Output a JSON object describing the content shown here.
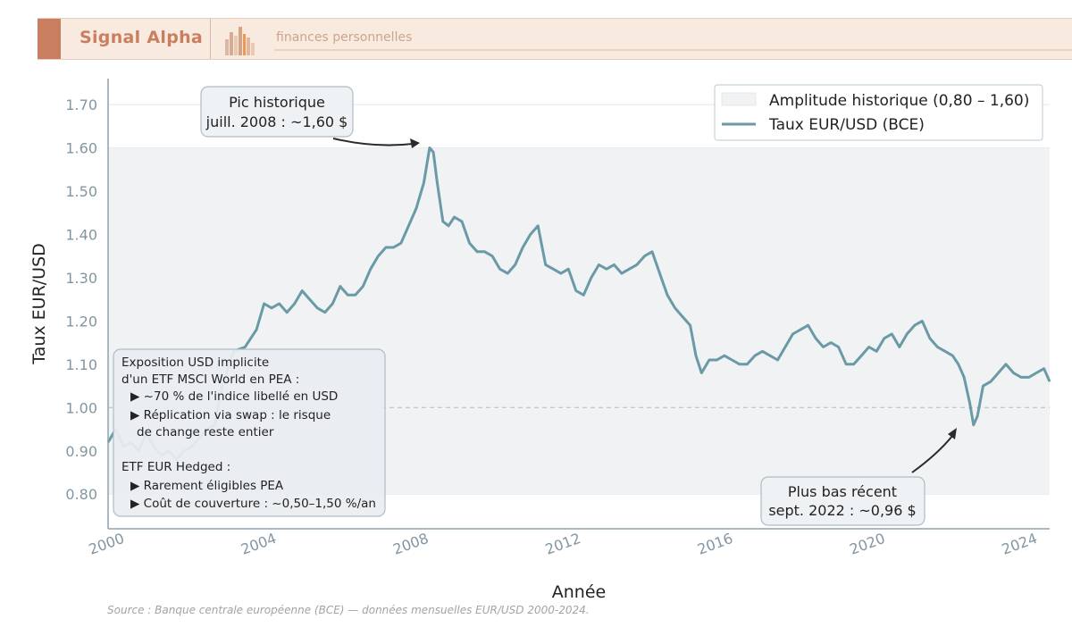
{
  "header": {
    "brand": "Signal Alpha",
    "tagline": "finances personnelles"
  },
  "colors": {
    "accent": "#c97f5f",
    "series": "#6a9aa6",
    "band": "#f0f2f4",
    "axis": "#8fa3ad",
    "tick_text": "#8396a2"
  },
  "chart_data": {
    "type": "line",
    "xlabel": "Année",
    "ylabel": "Taux EUR/USD",
    "xlim": [
      2000,
      2024.75
    ],
    "ylim": [
      0.72,
      1.76
    ],
    "yticks": [
      0.8,
      0.9,
      1.0,
      1.1,
      1.2,
      1.3,
      1.4,
      1.5,
      1.6,
      1.7
    ],
    "ytick_labels": [
      "0.80",
      "0.90",
      "1.00",
      "1.10",
      "1.20",
      "1.30",
      "1.40",
      "1.50",
      "1.60",
      "1.70"
    ],
    "xticks": [
      2000,
      2004,
      2008,
      2012,
      2016,
      2020,
      2024
    ],
    "xtick_labels": [
      "2000",
      "2004",
      "2008",
      "2012",
      "2016",
      "2020",
      "2024"
    ],
    "grid": true,
    "legend_placement": "top-right",
    "band": {
      "name": "Amplitude historique (0,80 – 1,60)",
      "low": 0.8,
      "high": 1.6
    },
    "reference_line": 1.0,
    "series": [
      {
        "name": "Taux EUR/USD (BCE)",
        "x": [
          2000.0,
          2000.2,
          2000.4,
          2000.6,
          2000.8,
          2001.0,
          2001.2,
          2001.4,
          2001.6,
          2001.8,
          2002.0,
          2002.2,
          2002.4,
          2002.6,
          2002.8,
          2003.0,
          2003.3,
          2003.6,
          2003.9,
          2004.1,
          2004.3,
          2004.5,
          2004.7,
          2004.9,
          2005.1,
          2005.3,
          2005.5,
          2005.7,
          2005.9,
          2006.1,
          2006.3,
          2006.5,
          2006.7,
          2006.9,
          2007.1,
          2007.3,
          2007.5,
          2007.7,
          2007.9,
          2008.1,
          2008.3,
          2008.45,
          2008.55,
          2008.65,
          2008.8,
          2008.95,
          2009.1,
          2009.3,
          2009.5,
          2009.7,
          2009.9,
          2010.1,
          2010.3,
          2010.5,
          2010.7,
          2010.9,
          2011.1,
          2011.3,
          2011.5,
          2011.7,
          2011.9,
          2012.1,
          2012.3,
          2012.5,
          2012.7,
          2012.9,
          2013.1,
          2013.3,
          2013.5,
          2013.7,
          2013.9,
          2014.1,
          2014.3,
          2014.5,
          2014.7,
          2014.9,
          2015.1,
          2015.3,
          2015.45,
          2015.6,
          2015.8,
          2016.0,
          2016.2,
          2016.4,
          2016.6,
          2016.8,
          2017.0,
          2017.2,
          2017.4,
          2017.6,
          2017.8,
          2018.0,
          2018.2,
          2018.4,
          2018.6,
          2018.8,
          2019.0,
          2019.2,
          2019.4,
          2019.6,
          2019.8,
          2020.0,
          2020.2,
          2020.4,
          2020.6,
          2020.8,
          2021.0,
          2021.2,
          2021.4,
          2021.6,
          2021.8,
          2022.0,
          2022.2,
          2022.35,
          2022.5,
          2022.65,
          2022.75,
          2022.85,
          2023.0,
          2023.2,
          2023.4,
          2023.6,
          2023.8,
          2024.0,
          2024.2,
          2024.4,
          2024.6,
          2024.75
        ],
        "y": [
          0.92,
          0.95,
          0.91,
          0.92,
          0.9,
          0.94,
          0.91,
          0.89,
          0.9,
          0.88,
          0.9,
          0.91,
          0.93,
          0.95,
          0.96,
          1.05,
          1.13,
          1.14,
          1.18,
          1.24,
          1.23,
          1.24,
          1.22,
          1.24,
          1.27,
          1.25,
          1.23,
          1.22,
          1.24,
          1.28,
          1.26,
          1.26,
          1.28,
          1.32,
          1.35,
          1.37,
          1.37,
          1.38,
          1.42,
          1.46,
          1.52,
          1.6,
          1.59,
          1.52,
          1.43,
          1.42,
          1.44,
          1.43,
          1.38,
          1.36,
          1.36,
          1.35,
          1.32,
          1.31,
          1.33,
          1.37,
          1.4,
          1.42,
          1.33,
          1.32,
          1.31,
          1.32,
          1.27,
          1.26,
          1.3,
          1.33,
          1.32,
          1.33,
          1.31,
          1.32,
          1.33,
          1.35,
          1.36,
          1.31,
          1.26,
          1.23,
          1.21,
          1.19,
          1.12,
          1.08,
          1.11,
          1.11,
          1.12,
          1.11,
          1.1,
          1.1,
          1.12,
          1.13,
          1.12,
          1.11,
          1.14,
          1.17,
          1.18,
          1.19,
          1.16,
          1.14,
          1.15,
          1.14,
          1.1,
          1.1,
          1.12,
          1.14,
          1.13,
          1.16,
          1.17,
          1.14,
          1.17,
          1.19,
          1.2,
          1.16,
          1.14,
          1.13,
          1.12,
          1.1,
          1.07,
          1.01,
          0.96,
          0.98,
          1.05,
          1.06,
          1.08,
          1.1,
          1.08,
          1.07,
          1.07,
          1.08,
          1.09,
          1.06
        ]
      }
    ],
    "annotations": [
      {
        "text_lines": [
          "Pic historique",
          "juill. 2008 : ~1,60 $"
        ],
        "x": 2008.5,
        "y": 1.6
      },
      {
        "text_lines": [
          "Plus bas récent",
          "sept. 2022 : ~0,96 $"
        ],
        "x": 2022.75,
        "y": 0.96
      }
    ],
    "info_box": {
      "lines": [
        "Exposition USD implicite",
        "d'un ETF MSCI World en PEA :",
        "▶ ~70 % de l'indice libellé en USD",
        "▶ Réplication via swap : le risque",
        "de change reste entier",
        "",
        "ETF EUR Hedged :",
        "▶ Rarement éligibles PEA",
        "▶ Coût de couverture : ~0,50–1,50 %/an"
      ]
    },
    "source": "Source : Banque centrale européenne (BCE) — données mensuelles EUR/USD 2000-2024."
  }
}
